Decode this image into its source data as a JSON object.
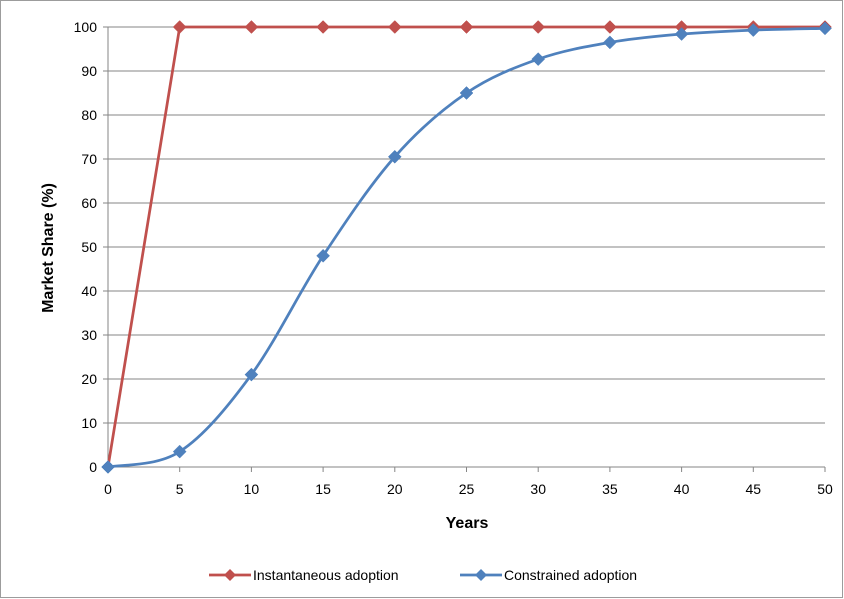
{
  "chart_data": {
    "type": "line",
    "xlabel": "Years",
    "ylabel": "Market Share (%)",
    "xlim": [
      0,
      50
    ],
    "ylim": [
      0,
      100
    ],
    "x_ticks": [
      0,
      5,
      10,
      15,
      20,
      25,
      30,
      35,
      40,
      45,
      50
    ],
    "y_ticks": [
      0,
      10,
      20,
      30,
      40,
      50,
      60,
      70,
      80,
      90,
      100
    ],
    "grid": "horizontal",
    "legend_position": "bottom",
    "x": [
      0,
      5,
      10,
      15,
      20,
      25,
      30,
      35,
      40,
      45,
      50
    ],
    "series": [
      {
        "name": "Instantaneous adoption",
        "color": "#c0504d",
        "marker": "diamond",
        "smooth": false,
        "values": [
          0,
          100,
          100,
          100,
          100,
          100,
          100,
          100,
          100,
          100,
          100
        ]
      },
      {
        "name": "Constrained adoption",
        "color": "#4f81bd",
        "marker": "diamond",
        "smooth": true,
        "values": [
          0,
          3.5,
          21,
          48,
          70.5,
          85,
          92.7,
          96.5,
          98.4,
          99.3,
          99.7
        ]
      }
    ]
  }
}
